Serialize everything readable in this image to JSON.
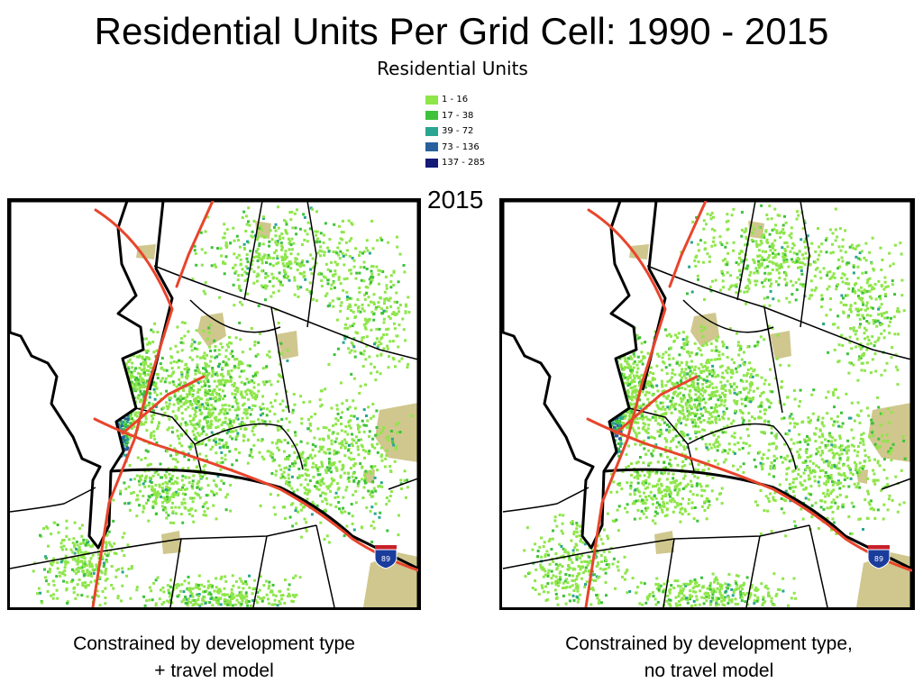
{
  "title": "Residential Units Per Grid Cell: 1990 - 2015",
  "legend": {
    "heading": "Residential Units",
    "items": [
      {
        "label": "1 - 16",
        "color": "#8ee64a"
      },
      {
        "label": "17 - 38",
        "color": "#3ec23a"
      },
      {
        "label": "39 - 72",
        "color": "#2aa592"
      },
      {
        "label": "73 - 136",
        "color": "#28609e"
      },
      {
        "label": "137 - 285",
        "color": "#131a78"
      }
    ]
  },
  "year_label": "2015",
  "maps": [
    {
      "id": "left",
      "caption_line1": "Constrained by development type",
      "caption_line2": "+ travel model",
      "highway_shield": "89"
    },
    {
      "id": "right",
      "caption_line1": "Constrained by development type,",
      "caption_line2": "no travel model",
      "highway_shield": "89"
    }
  ],
  "colors": {
    "road": "#e8452c",
    "boundary": "#000000",
    "open_land": "#cfc78d",
    "shield_blue": "#1a3c9c",
    "shield_red": "#c8202a"
  }
}
